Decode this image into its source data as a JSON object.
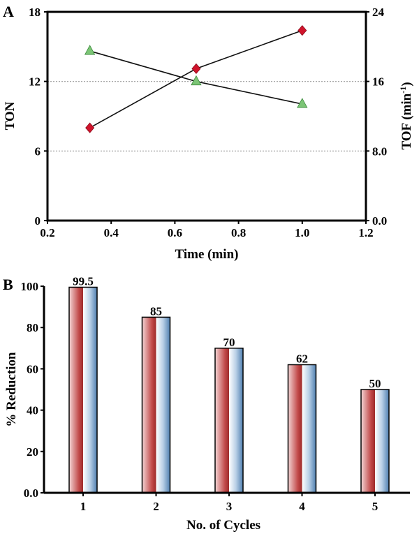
{
  "chart_data": [
    {
      "panel_label": "A",
      "type": "line",
      "xlabel": "Time (min)",
      "ylabel": "TON",
      "y2label": "TOF (min",
      "y2label_sup": "-1",
      "y2label_close": ")",
      "xlim": [
        0.2,
        1.2
      ],
      "ylim": [
        0,
        18
      ],
      "y2lim": [
        0,
        24
      ],
      "xticks": [
        "0.2",
        "0.4",
        "0.6",
        "0.8",
        "1.0",
        "1.2"
      ],
      "yticks": [
        "0",
        "6",
        "12",
        "18"
      ],
      "y2ticks": [
        "0.0",
        "8.0",
        "16",
        "24"
      ],
      "grid": "horizontal dotted at 6 and 12",
      "series": [
        {
          "axis": "left",
          "marker": "diamond",
          "color": "#d0142c",
          "x": [
            0.333,
            0.667,
            1.0
          ],
          "y": [
            8.0,
            13.1,
            16.4
          ]
        },
        {
          "axis": "right",
          "marker": "triangle",
          "color": "#7cc576",
          "x": [
            0.333,
            0.667,
            1.0
          ],
          "y": [
            19.5,
            16.0,
            13.4
          ]
        }
      ]
    },
    {
      "panel_label": "B",
      "type": "bar",
      "xlabel": "No. of Cycles",
      "ylabel": "% Reduction",
      "categories": [
        "1",
        "2",
        "3",
        "4",
        "5"
      ],
      "values": [
        99.5,
        85,
        70,
        62,
        50
      ],
      "data_labels": [
        "99.5",
        "85",
        "70",
        "62",
        "50"
      ],
      "ylim": [
        0,
        100
      ],
      "yticks": [
        "0.0",
        "20",
        "40",
        "60",
        "80",
        "100"
      ],
      "grid": false,
      "colors": {
        "red": "#b83a3a",
        "blue": "#5f8fbf"
      }
    }
  ]
}
